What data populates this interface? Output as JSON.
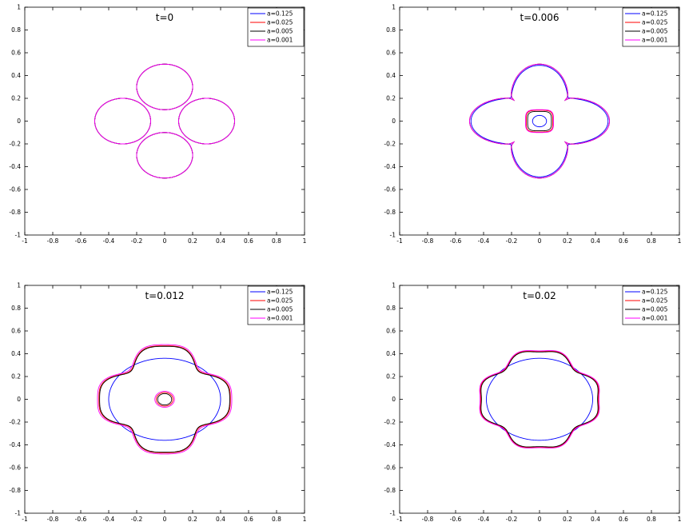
{
  "chart_data": [
    {
      "type": "line",
      "title": "t=0",
      "xlim": [
        -1,
        1
      ],
      "ylim": [
        -1,
        1
      ],
      "xticks": [
        "-1",
        "-0.8",
        "-0.6",
        "-0.4",
        "-0.2",
        "0",
        "0.2",
        "0.4",
        "0.6",
        "0.8",
        "1"
      ],
      "yticks": [
        "-1",
        "-0.8",
        "-0.6",
        "-0.4",
        "-0.2",
        "0",
        "0.2",
        "0.4",
        "0.6",
        "0.8",
        "1"
      ],
      "legend_position": "top-right",
      "series": [
        {
          "name": "a=0.125",
          "color": "#0000ff",
          "curves": [
            {
              "kind": "ellipse",
              "cx": 0,
              "cy": 0.3,
              "rx": 0.2,
              "ry": 0.2
            },
            {
              "kind": "ellipse",
              "cx": 0,
              "cy": -0.3,
              "rx": 0.2,
              "ry": 0.2
            },
            {
              "kind": "ellipse",
              "cx": 0.3,
              "cy": 0,
              "rx": 0.2,
              "ry": 0.2
            },
            {
              "kind": "ellipse",
              "cx": -0.3,
              "cy": 0,
              "rx": 0.2,
              "ry": 0.2
            }
          ]
        },
        {
          "name": "a=0.025",
          "color": "#ff0000",
          "curves": [
            {
              "kind": "ellipse",
              "cx": 0,
              "cy": 0.3,
              "rx": 0.2,
              "ry": 0.2
            },
            {
              "kind": "ellipse",
              "cx": 0,
              "cy": -0.3,
              "rx": 0.2,
              "ry": 0.2
            },
            {
              "kind": "ellipse",
              "cx": 0.3,
              "cy": 0,
              "rx": 0.2,
              "ry": 0.2
            },
            {
              "kind": "ellipse",
              "cx": -0.3,
              "cy": 0,
              "rx": 0.2,
              "ry": 0.2
            }
          ]
        },
        {
          "name": "a=0.005",
          "color": "#000000",
          "curves": [
            {
              "kind": "ellipse",
              "cx": 0,
              "cy": 0.3,
              "rx": 0.2,
              "ry": 0.2
            },
            {
              "kind": "ellipse",
              "cx": 0,
              "cy": -0.3,
              "rx": 0.2,
              "ry": 0.2
            },
            {
              "kind": "ellipse",
              "cx": 0.3,
              "cy": 0,
              "rx": 0.2,
              "ry": 0.2
            },
            {
              "kind": "ellipse",
              "cx": -0.3,
              "cy": 0,
              "rx": 0.2,
              "ry": 0.2
            }
          ]
        },
        {
          "name": "a=0.001",
          "color": "#ff00ff",
          "curves": [
            {
              "kind": "ellipse",
              "cx": 0,
              "cy": 0.3,
              "rx": 0.2,
              "ry": 0.2
            },
            {
              "kind": "ellipse",
              "cx": 0,
              "cy": -0.3,
              "rx": 0.2,
              "ry": 0.2
            },
            {
              "kind": "ellipse",
              "cx": 0.3,
              "cy": 0,
              "rx": 0.2,
              "ry": 0.2
            },
            {
              "kind": "ellipse",
              "cx": -0.3,
              "cy": 0,
              "rx": 0.2,
              "ry": 0.2
            }
          ]
        }
      ]
    },
    {
      "type": "line",
      "title": "t=0.006",
      "xlim": [
        -1,
        1
      ],
      "ylim": [
        -1,
        1
      ],
      "xticks": [
        "-1",
        "-0.8",
        "-0.6",
        "-0.4",
        "-0.2",
        "0",
        "0.2",
        "0.4",
        "0.6",
        "0.8",
        "1"
      ],
      "yticks": [
        "-1",
        "-0.8",
        "-0.6",
        "-0.4",
        "-0.2",
        "0",
        "0.2",
        "0.4",
        "0.6",
        "0.8",
        "1"
      ],
      "legend_position": "top-right",
      "series": [
        {
          "name": "a=0.125",
          "color": "#0000ff",
          "curves": [
            {
              "kind": "clover",
              "r0": 0.39,
              "amp": 0.1,
              "n": 4,
              "sharp": 1
            },
            {
              "kind": "ellipse",
              "cx": 0,
              "cy": 0,
              "rx": 0.05,
              "ry": 0.05
            }
          ]
        },
        {
          "name": "a=0.025",
          "color": "#ff0000",
          "curves": [
            {
              "kind": "clover",
              "r0": 0.38,
              "amp": 0.12,
              "n": 4,
              "sharp": 3
            },
            {
              "kind": "superellipse",
              "cx": 0,
              "cy": 0,
              "a": 0.095,
              "p": 4
            }
          ]
        },
        {
          "name": "a=0.005",
          "color": "#000000",
          "curves": [
            {
              "kind": "clover",
              "r0": 0.38,
              "amp": 0.12,
              "n": 4,
              "sharp": 3
            },
            {
              "kind": "superellipse",
              "cx": 0,
              "cy": 0,
              "a": 0.085,
              "p": 4
            }
          ]
        },
        {
          "name": "a=0.001",
          "color": "#ff00ff",
          "curves": [
            {
              "kind": "clover",
              "r0": 0.38,
              "amp": 0.12,
              "n": 4,
              "sharp": 3
            },
            {
              "kind": "superellipse",
              "cx": 0,
              "cy": 0,
              "a": 0.1,
              "p": 4
            }
          ]
        }
      ]
    },
    {
      "type": "line",
      "title": "t=0.012",
      "xlim": [
        -1,
        1
      ],
      "ylim": [
        -1,
        1
      ],
      "xticks": [
        "-1",
        "-0.8",
        "-0.6",
        "-0.4",
        "-0.2",
        "0",
        "0.2",
        "0.4",
        "0.6",
        "0.8",
        "1"
      ],
      "yticks": [
        "-1",
        "-0.8",
        "-0.6",
        "-0.4",
        "-0.2",
        "0",
        "0.2",
        "0.4",
        "0.6",
        "0.8",
        "1"
      ],
      "legend_position": "top-right",
      "series": [
        {
          "name": "a=0.125",
          "color": "#0000ff",
          "curves": [
            {
              "kind": "ellipse",
              "cx": 0,
              "cy": 0,
              "rx": 0.4,
              "ry": 0.36
            }
          ]
        },
        {
          "name": "a=0.025",
          "color": "#ff0000",
          "curves": [
            {
              "kind": "rosette",
              "r0": 0.43,
              "amp": 0.06
            },
            {
              "kind": "ellipse",
              "cx": 0,
              "cy": 0,
              "rx": 0.06,
              "ry": 0.06
            }
          ]
        },
        {
          "name": "a=0.005",
          "color": "#000000",
          "curves": [
            {
              "kind": "rosette",
              "r0": 0.425,
              "amp": 0.06
            },
            {
              "kind": "ellipse",
              "cx": 0,
              "cy": 0,
              "rx": 0.05,
              "ry": 0.05
            }
          ]
        },
        {
          "name": "a=0.001",
          "color": "#ff00ff",
          "curves": [
            {
              "kind": "rosette",
              "r0": 0.44,
              "amp": 0.06
            },
            {
              "kind": "ellipse",
              "cx": 0,
              "cy": 0,
              "rx": 0.07,
              "ry": 0.07
            }
          ]
        }
      ]
    },
    {
      "type": "line",
      "title": "t=0.02",
      "xlim": [
        -1,
        1
      ],
      "ylim": [
        -1,
        1
      ],
      "xticks": [
        "-1",
        "-0.8",
        "-0.6",
        "-0.4",
        "-0.2",
        "0",
        "0.2",
        "0.4",
        "0.6",
        "0.8",
        "1"
      ],
      "yticks": [
        "-1",
        "-0.8",
        "-0.6",
        "-0.4",
        "-0.2",
        "0",
        "0.2",
        "0.4",
        "0.6",
        "0.8",
        "1"
      ],
      "legend_position": "top-right",
      "series": [
        {
          "name": "a=0.125",
          "color": "#0000ff",
          "curves": [
            {
              "kind": "ellipse",
              "cx": 0,
              "cy": 0,
              "rx": 0.38,
              "ry": 0.36
            }
          ]
        },
        {
          "name": "a=0.025",
          "color": "#ff0000",
          "curves": [
            {
              "kind": "rosette",
              "r0": 0.41,
              "amp": 0.03
            }
          ]
        },
        {
          "name": "a=0.005",
          "color": "#000000",
          "curves": [
            {
              "kind": "rosette",
              "r0": 0.405,
              "amp": 0.03
            }
          ]
        },
        {
          "name": "a=0.001",
          "color": "#ff00ff",
          "curves": [
            {
              "kind": "rosette",
              "r0": 0.415,
              "amp": 0.03
            }
          ]
        }
      ]
    }
  ]
}
